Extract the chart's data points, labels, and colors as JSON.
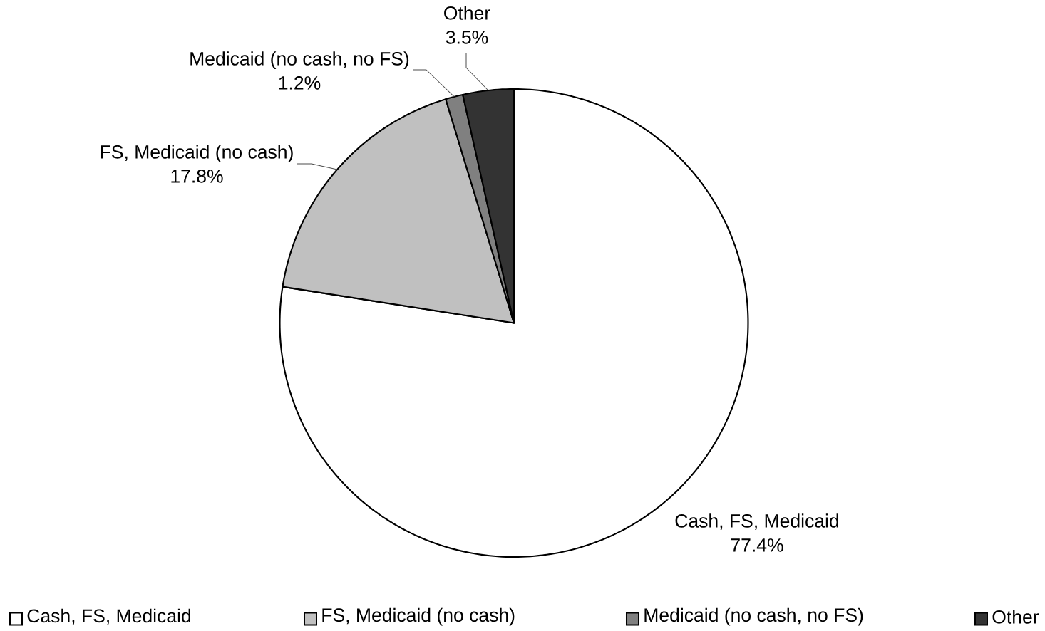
{
  "chart_data": {
    "type": "pie",
    "categories": [
      "Cash, FS, Medicaid",
      "FS, Medicaid (no cash)",
      "Medicaid (no cash, no FS)",
      "Other"
    ],
    "values": [
      77.4,
      17.8,
      1.2,
      3.5
    ],
    "colors": [
      "#ffffff",
      "#c0c0c0",
      "#808080",
      "#333333"
    ],
    "value_labels": [
      "77.4%",
      "17.8%",
      "1.2%",
      "3.5%"
    ],
    "legend": "bottom"
  }
}
